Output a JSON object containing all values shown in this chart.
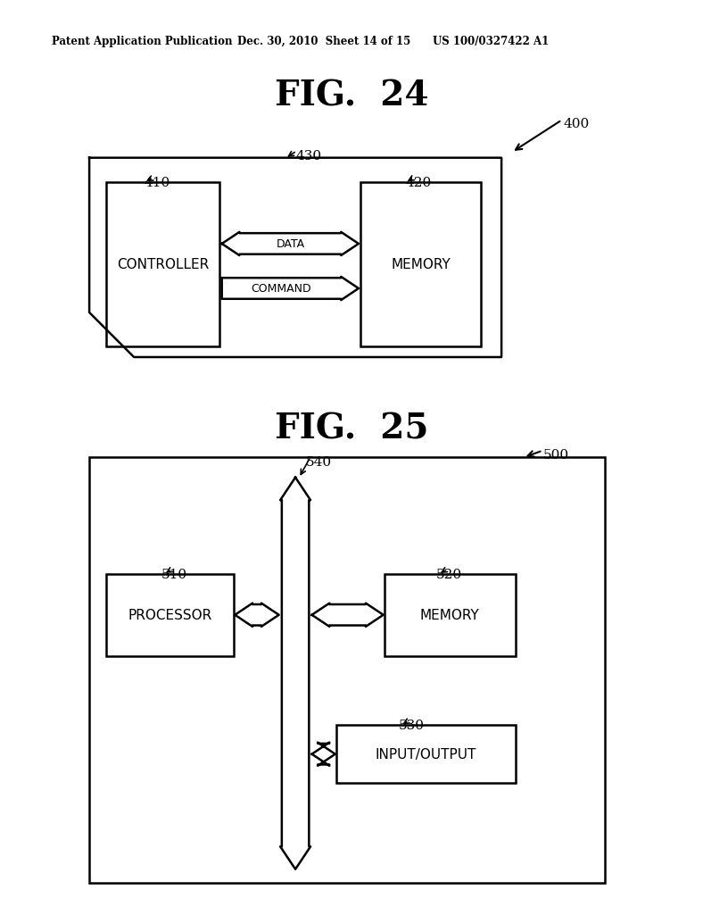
{
  "header_left": "Patent Application Publication",
  "header_mid": "Dec. 30, 2010  Sheet 14 of 15",
  "header_right": "US 100/0327422 A1",
  "fig24_title": "FIG.  24",
  "fig25_title": "FIG.  25",
  "fig24_ref": "400",
  "fig24_outer_label": "430",
  "fig24_controller_label": "410",
  "fig24_controller_text": "CONTROLLER",
  "fig24_memory_label": "420",
  "fig24_memory_text": "MEMORY",
  "fig24_data_text": "DATA",
  "fig24_command_text": "COMMAND",
  "fig25_ref": "500",
  "fig25_bus_label": "540",
  "fig25_processor_label": "510",
  "fig25_processor_text": "PROCESSOR",
  "fig25_memory_label": "520",
  "fig25_memory_text": "MEMORY",
  "fig25_io_label": "530",
  "fig25_io_text": "INPUT/OUTPUT",
  "bg_color": "#ffffff",
  "line_color": "#000000"
}
